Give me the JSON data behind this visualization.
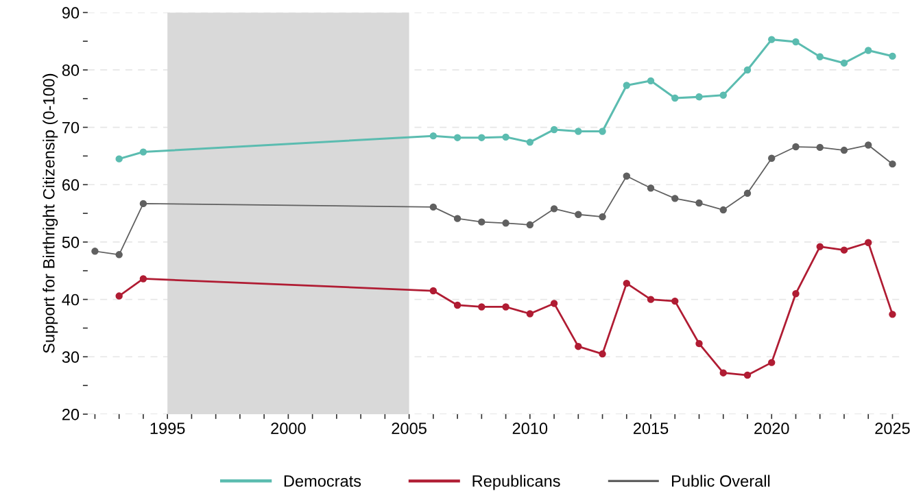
{
  "chart_data": {
    "type": "line",
    "ylabel": "Support for Birthright Citizensip (0-100)",
    "xlim": [
      1991.7,
      2025.5
    ],
    "ylim": [
      20,
      90
    ],
    "xticks": [
      {
        "value": 1992,
        "label": null
      },
      {
        "value": 1993,
        "label": null
      },
      {
        "value": 1994,
        "label": null
      },
      1995,
      {
        "value": 1996,
        "label": null
      },
      {
        "value": 1997,
        "label": null
      },
      {
        "value": 1998,
        "label": null
      },
      {
        "value": 1999,
        "label": null
      },
      2000,
      {
        "value": 2001,
        "label": null
      },
      {
        "value": 2002,
        "label": null
      },
      {
        "value": 2003,
        "label": null
      },
      {
        "value": 2004,
        "label": null
      },
      2005,
      {
        "value": 2006,
        "label": null
      },
      {
        "value": 2007,
        "label": null
      },
      {
        "value": 2008,
        "label": null
      },
      {
        "value": 2009,
        "label": null
      },
      2010,
      {
        "value": 2011,
        "label": null
      },
      {
        "value": 2012,
        "label": null
      },
      {
        "value": 2013,
        "label": null
      },
      {
        "value": 2014,
        "label": null
      },
      2015,
      {
        "value": 2016,
        "label": null
      },
      {
        "value": 2017,
        "label": null
      },
      {
        "value": 2018,
        "label": null
      },
      {
        "value": 2019,
        "label": null
      },
      2020,
      {
        "value": 2021,
        "label": null
      },
      {
        "value": 2022,
        "label": null
      },
      {
        "value": 2023,
        "label": null
      },
      {
        "value": 2024,
        "label": null
      },
      2025
    ],
    "yticks": [
      20,
      {
        "value": 25,
        "label": null
      },
      30,
      {
        "value": 35,
        "label": null
      },
      40,
      {
        "value": 45,
        "label": null
      },
      50,
      {
        "value": 55,
        "label": null
      },
      60,
      {
        "value": 65,
        "label": null
      },
      70,
      {
        "value": 75,
        "label": null
      },
      80,
      {
        "value": 85,
        "label": null
      },
      90
    ],
    "grid": "y",
    "legend": "bottom",
    "marker": "circle",
    "bands": [
      {
        "axis": "x",
        "from": 1995,
        "to": 2005,
        "color": "#d9d9d9"
      }
    ],
    "series": [
      {
        "name": "Democrats",
        "color": "#5bbcb0",
        "x": [
          1993,
          1994,
          2006,
          2007,
          2008,
          2009,
          2010,
          2011,
          2012,
          2013,
          2014,
          2015,
          2016,
          2017,
          2018,
          2019,
          2020,
          2021,
          2022,
          2023,
          2024,
          2025
        ],
        "values": [
          64.5,
          65.7,
          68.5,
          68.2,
          68.2,
          68.3,
          67.4,
          69.6,
          69.3,
          69.3,
          77.3,
          78.1,
          75.1,
          75.3,
          75.6,
          80.0,
          85.3,
          84.9,
          82.3,
          81.2,
          83.4,
          82.4
        ]
      },
      {
        "name": "Republicans",
        "color": "#b01c33",
        "x": [
          1993,
          1994,
          2006,
          2007,
          2008,
          2009,
          2010,
          2011,
          2012,
          2013,
          2014,
          2015,
          2016,
          2017,
          2018,
          2019,
          2020,
          2021,
          2022,
          2023,
          2024,
          2025
        ],
        "values": [
          40.6,
          43.6,
          41.5,
          39.0,
          38.7,
          38.7,
          37.5,
          39.3,
          31.8,
          30.5,
          42.8,
          40.0,
          39.7,
          32.3,
          27.2,
          26.8,
          29.0,
          41.0,
          49.2,
          48.6,
          49.9,
          37.4
        ]
      },
      {
        "name": "Public Overall",
        "color": "#606060",
        "x": [
          1992,
          1993,
          1994,
          2006,
          2007,
          2008,
          2009,
          2010,
          2011,
          2012,
          2013,
          2014,
          2015,
          2016,
          2017,
          2018,
          2019,
          2020,
          2021,
          2022,
          2023,
          2024,
          2025
        ],
        "values": [
          48.4,
          47.8,
          56.7,
          56.1,
          54.1,
          53.5,
          53.3,
          53.0,
          55.8,
          54.8,
          54.4,
          61.5,
          59.4,
          57.6,
          56.8,
          55.6,
          58.5,
          64.6,
          66.6,
          66.5,
          66.0,
          66.9,
          63.6
        ]
      }
    ]
  }
}
